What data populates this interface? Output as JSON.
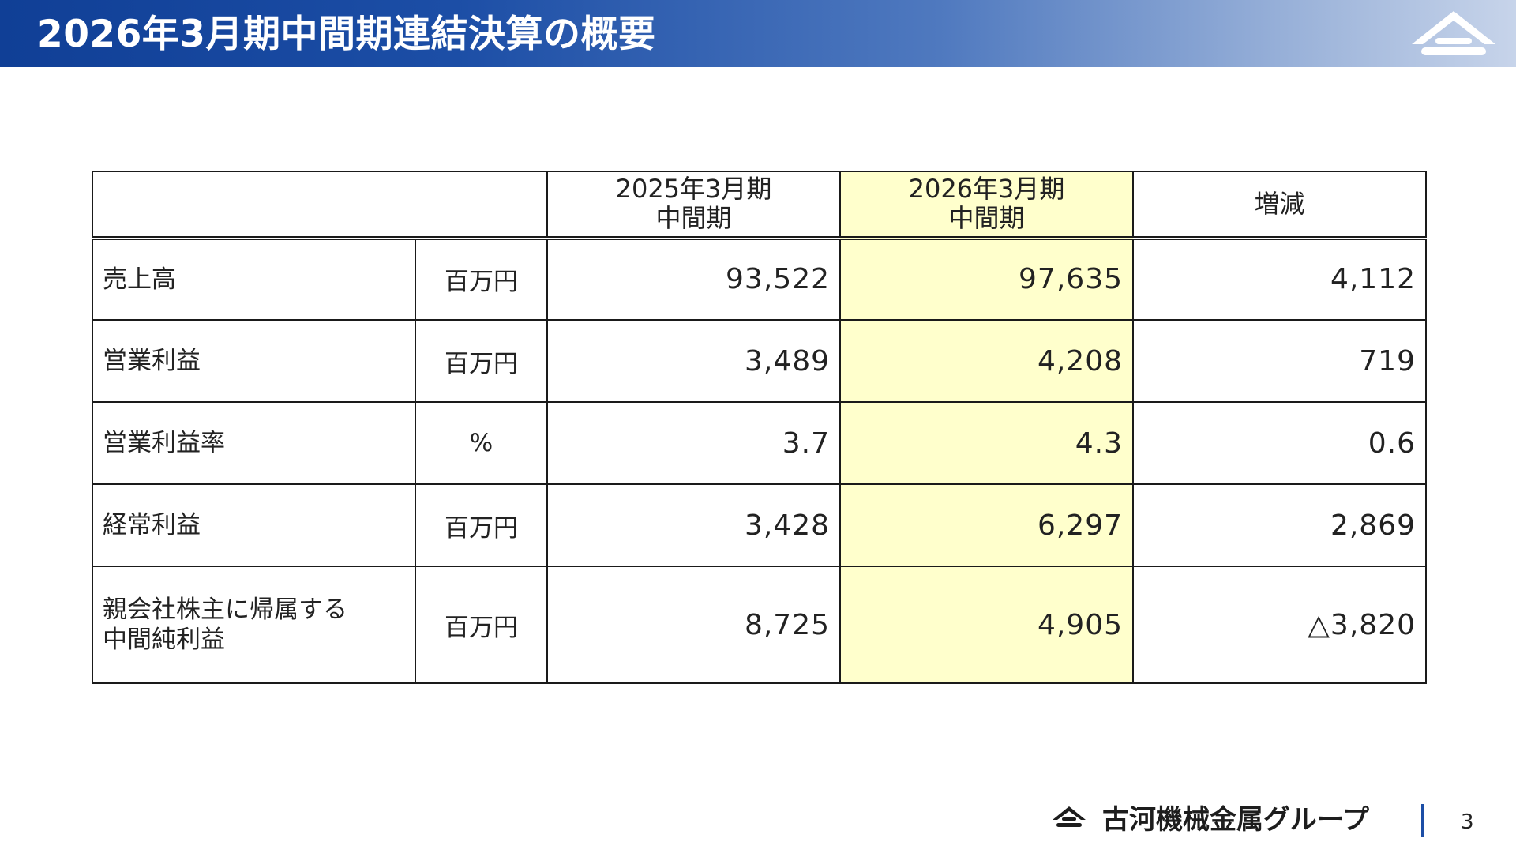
{
  "header": {
    "title": "2026年3月期中間期連結決算の概要"
  },
  "table": {
    "columns": [
      {
        "line1": "",
        "line2": ""
      },
      {
        "line1": "2025年3月期",
        "line2": "中間期"
      },
      {
        "line1": "2026年3月期",
        "line2": "中間期"
      },
      {
        "line1": "増減",
        "line2": ""
      }
    ],
    "rows": [
      {
        "item": "売上高",
        "item_line2": "",
        "unit": "百万円",
        "prev": "93,522",
        "curr": "97,635",
        "diff": "4,112"
      },
      {
        "item": "営業利益",
        "item_line2": "",
        "unit": "百万円",
        "prev": "3,489",
        "curr": "4,208",
        "diff": "719"
      },
      {
        "item": "営業利益率",
        "item_line2": "",
        "unit": "%",
        "prev": "3.7",
        "curr": "4.3",
        "diff": "0.6"
      },
      {
        "item": "経常利益",
        "item_line2": "",
        "unit": "百万円",
        "prev": "3,428",
        "curr": "6,297",
        "diff": "2,869"
      },
      {
        "item": "親会社株主に帰属する",
        "item_line2": "中間純利益",
        "unit": "百万円",
        "prev": "8,725",
        "curr": "4,905",
        "diff": "△3,820"
      }
    ],
    "highlight_color": "#ffffcc"
  },
  "footer": {
    "company": "古河機械金属グループ",
    "page_number": "3"
  },
  "colors": {
    "header_start": "#103f96",
    "header_end": "#c7d4ea",
    "accent": "#1c4ea6"
  },
  "icons": {
    "header_logo": "furukawa-mountain-logo-icon",
    "footer_logo": "furukawa-mountain-logo-icon"
  }
}
